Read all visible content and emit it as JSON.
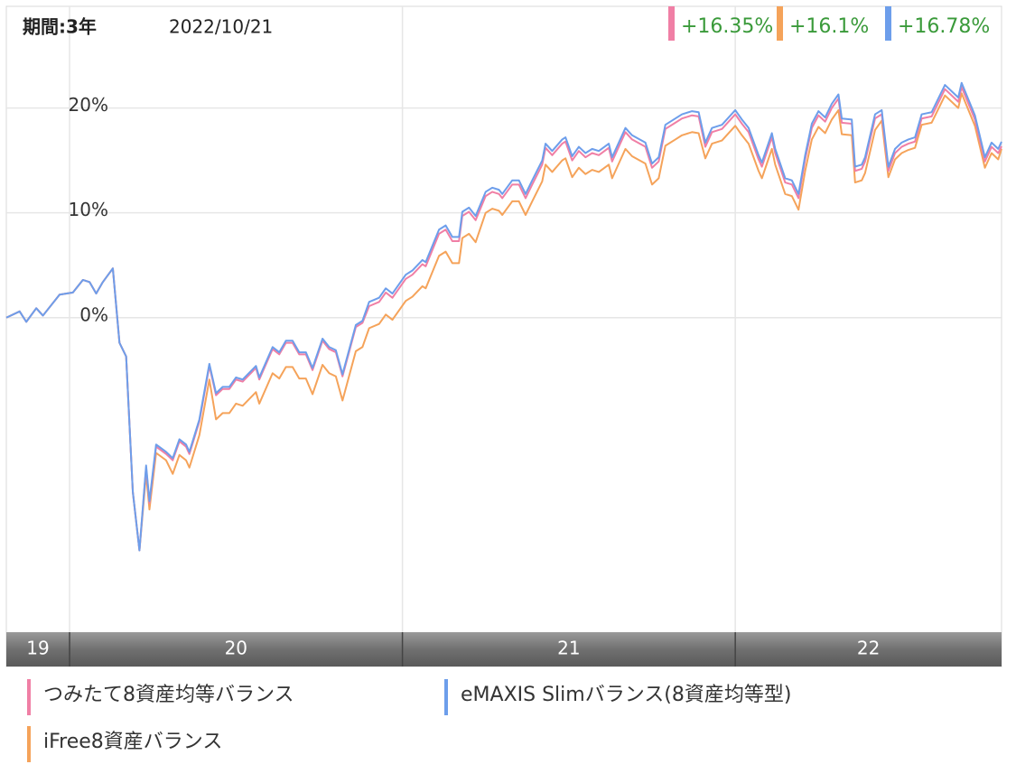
{
  "chart_data": {
    "type": "line",
    "period_label": "期間:3年",
    "date": "2022/10/21",
    "x": [
      2019.81,
      2019.85,
      2019.87,
      2019.9,
      2019.92,
      2019.97,
      2020.01,
      2020.04,
      2020.06,
      2020.08,
      2020.1,
      2020.13,
      2020.15,
      2020.17,
      2020.19,
      2020.21,
      2020.23,
      2020.24,
      2020.26,
      2020.29,
      2020.31,
      2020.33,
      2020.35,
      2020.36,
      2020.39,
      2020.42,
      2020.44,
      2020.46,
      2020.48,
      2020.5,
      2020.52,
      2020.56,
      2020.57,
      2020.61,
      2020.63,
      2020.65,
      2020.67,
      2020.69,
      2020.71,
      2020.73,
      2020.76,
      2020.78,
      2020.8,
      2020.82,
      2020.86,
      2020.88,
      2020.9,
      2020.93,
      2020.95,
      2020.97,
      2021.01,
      2021.03,
      2021.06,
      2021.07,
      2021.11,
      2021.13,
      2021.15,
      2021.17,
      2021.18,
      2021.2,
      2021.22,
      2021.25,
      2021.27,
      2021.29,
      2021.3,
      2021.33,
      2021.35,
      2021.37,
      2021.39,
      2021.42,
      2021.43,
      2021.45,
      2021.48,
      2021.49,
      2021.51,
      2021.53,
      2021.55,
      2021.57,
      2021.59,
      2021.62,
      2021.63,
      2021.67,
      2021.69,
      2021.73,
      2021.75,
      2021.77,
      2021.79,
      2021.82,
      2021.84,
      2021.87,
      2021.89,
      2021.91,
      2021.93,
      2021.96,
      2022.0,
      2022.02,
      2022.04,
      2022.07,
      2022.08,
      2022.11,
      2022.12,
      2022.15,
      2022.17,
      2022.19,
      2022.21,
      2022.23,
      2022.25,
      2022.27,
      2022.29,
      2022.31,
      2022.32,
      2022.35,
      2022.36,
      2022.38,
      2022.39,
      2022.42,
      2022.44,
      2022.46,
      2022.48,
      2022.5,
      2022.52,
      2022.54,
      2022.56,
      2022.59,
      2022.63,
      2022.67,
      2022.68,
      2022.72,
      2022.75,
      2022.77,
      2022.79,
      2022.8
    ],
    "series": [
      {
        "name": "つみたて8資産均等バランス",
        "color": "#f07fa5",
        "last_label": "+16.35%",
        "values": [
          0,
          0.6,
          -0.4,
          0.9,
          0.2,
          2.2,
          2.4,
          3.6,
          3.4,
          2.3,
          3.4,
          4.7,
          -2.4,
          -3.7,
          -16.6,
          -22.2,
          -14.3,
          -17.7,
          -12.3,
          -13.0,
          -13.6,
          -11.8,
          -12.3,
          -13.0,
          -9.9,
          -4.6,
          -7.4,
          -6.8,
          -6.8,
          -5.9,
          -6.1,
          -4.8,
          -5.9,
          -3.0,
          -3.5,
          -2.4,
          -2.4,
          -3.5,
          -3.5,
          -5.0,
          -2.2,
          -3.0,
          -3.3,
          -5.6,
          -0.9,
          -0.5,
          1.1,
          1.5,
          2.4,
          1.9,
          3.7,
          4.1,
          5.1,
          4.9,
          8.0,
          8.4,
          7.3,
          7.3,
          9.7,
          10.1,
          9.3,
          11.6,
          12.0,
          11.8,
          11.4,
          12.7,
          12.7,
          11.4,
          12.7,
          14.6,
          16.2,
          15.5,
          16.6,
          16.8,
          15.0,
          15.9,
          15.3,
          15.7,
          15.5,
          16.2,
          14.9,
          17.7,
          17.0,
          16.3,
          14.3,
          14.9,
          18.0,
          18.6,
          19.0,
          19.3,
          19.2,
          16.3,
          17.7,
          18.0,
          19.4,
          18.5,
          17.7,
          15.1,
          14.4,
          17.2,
          15.7,
          12.9,
          12.7,
          11.4,
          15.1,
          18.1,
          19.3,
          18.7,
          20.0,
          20.9,
          18.6,
          18.5,
          14.0,
          14.2,
          14.9,
          19.0,
          19.4,
          14.0,
          15.7,
          16.3,
          16.6,
          16.8,
          19.0,
          19.2,
          21.8,
          20.6,
          22.0,
          18.9,
          14.9,
          16.3,
          15.7,
          16.35
        ]
      },
      {
        "name": "eMAXIS Slimバランス(8資産均等型)",
        "color": "#6d9eeb",
        "last_label": "+16.78%",
        "values": [
          0,
          0.6,
          -0.4,
          0.9,
          0.2,
          2.2,
          2.4,
          3.6,
          3.4,
          2.3,
          3.4,
          4.7,
          -2.4,
          -3.7,
          -16.6,
          -22.2,
          -14.1,
          -17.5,
          -12.1,
          -12.8,
          -13.4,
          -11.6,
          -12.1,
          -12.8,
          -9.7,
          -4.4,
          -7.2,
          -6.6,
          -6.6,
          -5.7,
          -5.9,
          -4.6,
          -5.7,
          -2.8,
          -3.3,
          -2.2,
          -2.2,
          -3.3,
          -3.3,
          -4.8,
          -2.0,
          -2.8,
          -3.1,
          -5.4,
          -0.7,
          -0.3,
          1.5,
          1.9,
          2.8,
          2.3,
          4.1,
          4.5,
          5.5,
          5.3,
          8.4,
          8.8,
          7.7,
          7.7,
          10.1,
          10.5,
          9.7,
          12.0,
          12.4,
          12.2,
          11.8,
          13.1,
          13.1,
          11.8,
          13.1,
          15.0,
          16.6,
          15.9,
          17.0,
          17.2,
          15.4,
          16.3,
          15.7,
          16.1,
          15.9,
          16.6,
          15.3,
          18.1,
          17.4,
          16.7,
          14.7,
          15.3,
          18.4,
          19.0,
          19.4,
          19.7,
          19.6,
          16.7,
          18.1,
          18.4,
          19.8,
          18.9,
          18.1,
          15.5,
          14.8,
          17.6,
          16.1,
          13.3,
          13.1,
          11.8,
          15.5,
          18.5,
          19.7,
          19.1,
          20.4,
          21.3,
          19.0,
          18.9,
          14.4,
          14.6,
          15.3,
          19.4,
          19.8,
          14.4,
          16.1,
          16.7,
          17.0,
          17.2,
          19.4,
          19.6,
          22.2,
          21.0,
          22.4,
          19.3,
          15.3,
          16.7,
          16.1,
          16.78
        ]
      },
      {
        "name": "iFree8資産バランス",
        "color": "#f5a35a",
        "last_label": "+16.1%",
        "values": [
          0,
          0.6,
          -0.4,
          0.9,
          0.2,
          2.2,
          2.4,
          3.6,
          3.4,
          2.3,
          3.4,
          4.7,
          -2.4,
          -3.7,
          -16.6,
          -22.2,
          -14.9,
          -18.3,
          -12.9,
          -13.6,
          -14.9,
          -13.1,
          -13.6,
          -14.3,
          -11.2,
          -5.9,
          -9.7,
          -9.1,
          -9.1,
          -8.2,
          -8.4,
          -7.1,
          -8.2,
          -5.3,
          -5.8,
          -4.7,
          -4.7,
          -5.8,
          -5.8,
          -7.3,
          -4.5,
          -5.3,
          -5.6,
          -7.9,
          -3.2,
          -2.8,
          -1.0,
          -0.6,
          0.3,
          -0.2,
          1.6,
          2.0,
          3.0,
          2.8,
          5.9,
          6.3,
          5.2,
          5.2,
          7.6,
          8.0,
          7.2,
          10.0,
          10.4,
          10.2,
          9.8,
          11.1,
          11.1,
          9.8,
          11.1,
          13.0,
          14.6,
          13.9,
          15.0,
          15.2,
          13.4,
          14.3,
          13.7,
          14.1,
          13.9,
          14.6,
          13.3,
          16.1,
          15.4,
          14.7,
          12.7,
          13.3,
          16.4,
          17.0,
          17.4,
          17.7,
          17.6,
          15.2,
          16.6,
          16.9,
          18.3,
          17.4,
          16.6,
          14.0,
          13.3,
          16.1,
          14.6,
          11.8,
          11.6,
          10.3,
          14.0,
          17.0,
          18.2,
          17.6,
          18.9,
          19.8,
          17.5,
          17.4,
          12.9,
          13.1,
          13.8,
          17.9,
          18.8,
          13.4,
          15.1,
          15.7,
          16.0,
          16.2,
          18.4,
          18.6,
          21.2,
          20.0,
          21.4,
          18.3,
          14.3,
          15.7,
          15.1,
          16.1
        ]
      }
    ],
    "xlim": [
      2019.81,
      2022.8
    ],
    "xticks": [
      {
        "value": 2019,
        "label": "19"
      },
      {
        "value": 2020,
        "label": "20"
      },
      {
        "value": 2021,
        "label": "21"
      },
      {
        "value": 2022,
        "label": "22"
      }
    ],
    "ylim": [
      -30,
      29.7
    ],
    "yticks": [
      {
        "value": 0,
        "label": "0%"
      },
      {
        "value": 10,
        "label": "10%"
      },
      {
        "value": 20,
        "label": "20%"
      }
    ],
    "grid": true
  }
}
